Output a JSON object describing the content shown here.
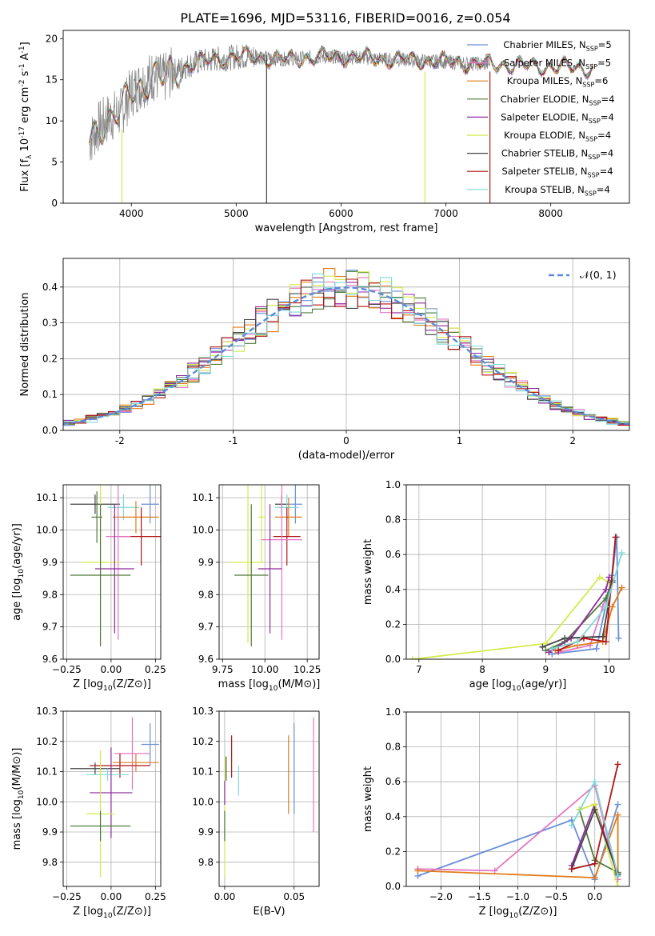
{
  "figure": {
    "title": "PLATE=1696, MJD=53116, FIBERID=0016, z=0.054"
  },
  "colors": {
    "Chabrier MILES": "#6b8fd6",
    "Salpeter MILES": "#e377c2",
    "Kroupa MILES": "#e07c1a",
    "Chabrier ELODIE": "#4f7a3a",
    "Salpeter ELODIE": "#8e2a9e",
    "Kroupa ELODIE": "#d4ea4a",
    "Chabrier STELIB": "#444444",
    "Salpeter STELIB": "#b01515",
    "Kroupa STELIB": "#7fd8d8",
    "observed": "#808080",
    "normal": "#5b8bd9",
    "grid": "#b0b0b0"
  },
  "chart_data": [
    {
      "id": "spectrum",
      "type": "line",
      "xlabel": "wavelength [Angstrom, rest frame]",
      "ylabel": "Flux [f_λ 10^-17 erg cm^-2 s^-1 A^-1]",
      "xlim": [
        3350,
        8750
      ],
      "ylim": [
        0,
        21
      ],
      "xticks": [
        4000,
        5000,
        6000,
        7000,
        8000
      ],
      "yticks": [
        0,
        5,
        10,
        15,
        20
      ],
      "grid": false,
      "legend_position": "right",
      "legend": [
        {
          "label": "Chabrier MILES, N_SSP=5",
          "color_key": "Chabrier MILES"
        },
        {
          "label": "Salpeter MILES, N_SSP=5",
          "color_key": "Salpeter MILES"
        },
        {
          "label": "Kroupa MILES, N_SSP=6",
          "color_key": "Kroupa MILES"
        },
        {
          "label": "Chabrier ELODIE, N_SSP=4",
          "color_key": "Chabrier ELODIE"
        },
        {
          "label": "Salpeter ELODIE, N_SSP=4",
          "color_key": "Salpeter ELODIE"
        },
        {
          "label": "Kroupa ELODIE, N_SSP=4",
          "color_key": "Kroupa ELODIE"
        },
        {
          "label": "Chabrier STELIB, N_SSP=4",
          "color_key": "Chabrier STELIB"
        },
        {
          "label": "Salpeter STELIB, N_SSP=4",
          "color_key": "Salpeter STELIB"
        },
        {
          "label": "Kroupa STELIB, N_SSP=4",
          "color_key": "Kroupa STELIB"
        }
      ],
      "continuum_x": [
        3600,
        3700,
        3800,
        3900,
        4000,
        4100,
        4200,
        4300,
        4400,
        4500,
        4600,
        4700,
        4800,
        4900,
        5000,
        5200,
        5400,
        5600,
        5800,
        6000,
        6200,
        6400,
        6600,
        6800,
        7000,
        7200,
        7400,
        7600,
        7800,
        8000,
        8200,
        8400
      ],
      "continuum_y": [
        7.5,
        9.5,
        10.5,
        11.0,
        13.5,
        14.5,
        15.5,
        15.0,
        16.0,
        16.5,
        17.0,
        17.3,
        17.5,
        17.6,
        17.8,
        17.8,
        17.5,
        17.6,
        17.8,
        17.8,
        17.7,
        17.5,
        17.4,
        17.3,
        17.2,
        17.0,
        16.9,
        16.8,
        16.7,
        16.6,
        16.5,
        16.4
      ],
      "observed_range": [
        3600,
        7420
      ],
      "model_range": [
        3600,
        8400
      ],
      "bad_pixels": [
        {
          "x": 3910,
          "ymin": 0,
          "ymax": 9,
          "color_key": "Kroupa ELODIE"
        },
        {
          "x": 5290,
          "ymin": 0,
          "ymax": 18,
          "color_key": "Chabrier STELIB"
        },
        {
          "x": 6800,
          "ymin": 0,
          "ymax": 16,
          "color_key": "Kroupa ELODIE"
        },
        {
          "x": 7420,
          "ymin": 0,
          "ymax": 16,
          "color_key": "Salpeter STELIB"
        }
      ]
    },
    {
      "id": "residuals",
      "type": "histogram",
      "xlabel": "(data-model)/error",
      "ylabel": "Normed distribution",
      "xlim": [
        -2.5,
        2.5
      ],
      "ylim": [
        0,
        0.48
      ],
      "xticks": [
        -2,
        -1,
        0,
        1,
        2
      ],
      "yticks": [
        0.0,
        0.1,
        0.2,
        0.3,
        0.4
      ],
      "grid": true,
      "legend_position": "top-right",
      "normal_label": "𝒩(0, 1)",
      "bin_width": 0.1
    },
    {
      "id": "age_vs_Z",
      "type": "scatter",
      "xlabel": "Z [log10(Z/Z⊙)]",
      "ylabel": "age [log10(age/yr)]",
      "xlim": [
        -0.27,
        0.28
      ],
      "ylim": [
        9.6,
        10.14
      ],
      "xticks": [
        -0.25,
        0.0,
        0.25
      ],
      "xticklabels": [
        "−0.25",
        "0.00",
        "0.25"
      ],
      "yticks": [
        9.6,
        9.7,
        9.8,
        9.9,
        10.0,
        10.1
      ],
      "grid": true,
      "points": [
        {
          "series": "Chabrier STELIB",
          "x": -0.09,
          "y": 10.08,
          "xerr": 0.14,
          "yerr": 0.03
        },
        {
          "series": "Chabrier MILES",
          "x": 0.22,
          "y": 10.08,
          "xerr": 0.05,
          "yerr": 0.06
        },
        {
          "series": "Kroupa STELIB",
          "x": 0.07,
          "y": 10.07,
          "xerr": 0.09,
          "yerr": 0.04
        },
        {
          "series": "Chabrier ELODIE",
          "x": -0.08,
          "y": 10.04,
          "xerr": 0.03,
          "yerr": 0.08
        },
        {
          "series": "Kroupa MILES",
          "x": 0.14,
          "y": 10.04,
          "xerr": 0.13,
          "yerr": 0.05
        },
        {
          "series": "Salpeter STELIB",
          "x": 0.17,
          "y": 9.98,
          "xerr": 0.13,
          "yerr": 0.09
        },
        {
          "series": "Salpeter MILES",
          "x": 0.04,
          "y": 9.98,
          "xerr": 0.07,
          "yerr": 0.32
        },
        {
          "series": "Kroupa ELODIE",
          "x": -0.06,
          "y": 9.9,
          "xerr": 0.11,
          "yerr": 0.24
        },
        {
          "series": "Salpeter ELODIE",
          "x": 0.02,
          "y": 9.88,
          "xerr": 0.11,
          "yerr": 0.2
        },
        {
          "series": "Chabrier ELODIE",
          "x": -0.06,
          "y": 9.86,
          "xerr": 0.17,
          "yerr": 0.22
        }
      ]
    },
    {
      "id": "age_vs_mass",
      "type": "scatter",
      "xlabel": "mass [log10(M/M⊙)]",
      "ylabel": "",
      "xlim": [
        9.73,
        10.32
      ],
      "ylim": [
        9.6,
        10.14
      ],
      "xticks": [
        9.75,
        10.0,
        10.25
      ],
      "xticklabels": [
        "9.75",
        "10.00",
        "10.25"
      ],
      "yticks": [
        9.6,
        9.7,
        9.8,
        9.9,
        10.0,
        10.1
      ],
      "grid": true,
      "points": [
        {
          "series": "Chabrier STELIB",
          "x": 10.1,
          "y": 10.08,
          "xerr": 0.04,
          "yerr": 0.03
        },
        {
          "series": "Chabrier MILES",
          "x": 10.18,
          "y": 10.08,
          "xerr": 0.04,
          "yerr": 0.06
        },
        {
          "series": "Kroupa STELIB",
          "x": 10.13,
          "y": 10.07,
          "xerr": 0.07,
          "yerr": 0.04
        },
        {
          "series": "Kroupa MILES",
          "x": 10.14,
          "y": 10.04,
          "xerr": 0.08,
          "yerr": 0.06
        },
        {
          "series": "Kroupa ELODIE",
          "x": 9.98,
          "y": 10.04,
          "xerr": 0.02,
          "yerr": 0.14
        },
        {
          "series": "Salpeter STELIB",
          "x": 10.13,
          "y": 9.98,
          "xerr": 0.08,
          "yerr": 0.09
        },
        {
          "series": "Salpeter MILES",
          "x": 10.1,
          "y": 9.97,
          "xerr": 0.12,
          "yerr": 0.31
        },
        {
          "series": "Kroupa ELODIE",
          "x": 9.9,
          "y": 9.9,
          "xerr": 0.1,
          "yerr": 0.25
        },
        {
          "series": "Salpeter ELODIE",
          "x": 10.03,
          "y": 9.88,
          "xerr": 0.07,
          "yerr": 0.2
        },
        {
          "series": "Chabrier ELODIE",
          "x": 9.92,
          "y": 9.86,
          "xerr": 0.1,
          "yerr": 0.22
        }
      ]
    },
    {
      "id": "weight_vs_age",
      "type": "line",
      "xlabel": "age [log10(age/yr)]",
      "ylabel": "mass weight",
      "xlim": [
        6.8,
        10.32
      ],
      "ylim": [
        0,
        1.0
      ],
      "xticks": [
        7,
        8,
        9,
        10
      ],
      "yticks": [
        0.0,
        0.2,
        0.4,
        0.6,
        0.8,
        1.0
      ],
      "grid": true,
      "series": [
        {
          "name": "Kroupa ELODIE",
          "x": [
            6.9,
            9.0,
            9.85,
            10.0
          ],
          "y": [
            0.0,
            0.09,
            0.47,
            0.44
          ]
        },
        {
          "name": "Chabrier MILES",
          "x": [
            9.1,
            9.8,
            10.05,
            10.12,
            10.15
          ],
          "y": [
            0.03,
            0.06,
            0.48,
            0.7,
            0.12
          ]
        },
        {
          "name": "Salpeter MILES",
          "x": [
            9.2,
            9.7,
            9.9,
            10.05
          ],
          "y": [
            0.04,
            0.08,
            0.3,
            0.45
          ]
        },
        {
          "name": "Kroupa MILES",
          "x": [
            9.15,
            9.5,
            9.9,
            10.05,
            10.2
          ],
          "y": [
            0.05,
            0.08,
            0.1,
            0.3,
            0.41
          ]
        },
        {
          "name": "Chabrier ELODIE",
          "x": [
            9.0,
            9.3,
            9.95,
            10.05
          ],
          "y": [
            0.05,
            0.1,
            0.35,
            0.45
          ]
        },
        {
          "name": "Salpeter ELODIE",
          "x": [
            9.05,
            9.4,
            9.95,
            10.0
          ],
          "y": [
            0.04,
            0.12,
            0.4,
            0.47
          ]
        },
        {
          "name": "Chabrier STELIB",
          "x": [
            8.95,
            9.3,
            9.9,
            10.05
          ],
          "y": [
            0.07,
            0.12,
            0.13,
            0.44
          ]
        },
        {
          "name": "Salpeter STELIB",
          "x": [
            9.2,
            9.6,
            9.95,
            10.1
          ],
          "y": [
            0.05,
            0.12,
            0.1,
            0.7
          ]
        },
        {
          "name": "Kroupa STELIB",
          "x": [
            9.1,
            9.5,
            9.95,
            10.2
          ],
          "y": [
            0.06,
            0.1,
            0.3,
            0.61
          ]
        }
      ]
    },
    {
      "id": "mass_vs_Z",
      "type": "scatter",
      "xlabel": "Z [log10(Z/Z⊙)]",
      "ylabel": "mass [log10(M/M⊙)]",
      "xlim": [
        -0.27,
        0.28
      ],
      "ylim": [
        9.72,
        10.3
      ],
      "xticks": [
        -0.25,
        0.0,
        0.25
      ],
      "xticklabels": [
        "−0.25",
        "0.00",
        "0.25"
      ],
      "yticks": [
        9.8,
        9.9,
        10.0,
        10.1,
        10.2,
        10.3
      ],
      "grid": true,
      "points": [
        {
          "series": "Chabrier MILES",
          "x": 0.22,
          "y": 10.19,
          "xerr": 0.05,
          "yerr": 0.07
        },
        {
          "series": "Salpeter MILES",
          "x": 0.12,
          "y": 10.16,
          "xerr": 0.1,
          "yerr": 0.12
        },
        {
          "series": "Kroupa MILES",
          "x": 0.14,
          "y": 10.13,
          "xerr": 0.13,
          "yerr": 0.03
        },
        {
          "series": "Salpeter STELIB",
          "x": 0.05,
          "y": 10.12,
          "xerr": 0.17,
          "yerr": 0.04
        },
        {
          "series": "Chabrier STELIB",
          "x": -0.09,
          "y": 10.11,
          "xerr": 0.14,
          "yerr": 0.02
        },
        {
          "series": "Kroupa STELIB",
          "x": -0.02,
          "y": 10.09,
          "xerr": 0.12,
          "yerr": 0.02
        },
        {
          "series": "Salpeter ELODIE",
          "x": 0.0,
          "y": 10.03,
          "xerr": 0.12,
          "yerr": 0.15
        },
        {
          "series": "Kroupa ELODIE",
          "x": -0.06,
          "y": 9.96,
          "xerr": 0.08,
          "yerr": 0.21
        },
        {
          "series": "Chabrier ELODIE",
          "x": -0.06,
          "y": 9.92,
          "xerr": 0.17,
          "yerr": 0.05
        }
      ]
    },
    {
      "id": "mass_vs_ebv",
      "type": "scatter",
      "xlabel": "E(B-V)",
      "ylabel": "",
      "xlim": [
        -0.004,
        0.068
      ],
      "ylim": [
        9.72,
        10.3
      ],
      "xticks": [
        0.0,
        0.05
      ],
      "xticklabels": [
        "0.00",
        "0.05"
      ],
      "yticks": [
        9.8,
        9.9,
        10.0,
        10.1,
        10.2,
        10.3
      ],
      "grid": true,
      "points": [
        {
          "series": "Kroupa ELODIE",
          "x": 0.0,
          "y": 9.95,
          "xerr": 0.0,
          "yerr": 0.2
        },
        {
          "series": "Chabrier ELODIE",
          "x": 0.0,
          "y": 9.92,
          "xerr": 0.0,
          "yerr": 0.05
        },
        {
          "series": "Salpeter ELODIE",
          "x": 0.0,
          "y": 10.03,
          "xerr": 0.0,
          "yerr": 0.04
        },
        {
          "series": "Chabrier STELIB",
          "x": 0.001,
          "y": 10.11,
          "xerr": 0.0,
          "yerr": 0.04
        },
        {
          "series": "Salpeter STELIB",
          "x": 0.005,
          "y": 10.15,
          "xerr": 0.0,
          "yerr": 0.07
        },
        {
          "series": "Kroupa STELIB",
          "x": 0.01,
          "y": 10.07,
          "xerr": 0.0,
          "yerr": 0.05
        },
        {
          "series": "Kroupa MILES",
          "x": 0.046,
          "y": 10.09,
          "xerr": 0.0,
          "yerr": 0.13
        },
        {
          "series": "Chabrier MILES",
          "x": 0.05,
          "y": 10.11,
          "xerr": 0.0,
          "yerr": 0.15
        },
        {
          "series": "Salpeter MILES",
          "x": 0.064,
          "y": 10.09,
          "xerr": 0.0,
          "yerr": 0.19
        }
      ]
    },
    {
      "id": "weight_vs_Z",
      "type": "line",
      "xlabel": "Z [log10(Z/Z⊙)]",
      "ylabel": "mass weight",
      "xlim": [
        -2.45,
        0.45
      ],
      "ylim": [
        0,
        1.0
      ],
      "xticks": [
        -2.0,
        -1.5,
        -1.0,
        -0.5,
        0.0
      ],
      "xticklabels": [
        "−2.0",
        "−1.5",
        "−1.0",
        "−0.5",
        "0.0"
      ],
      "yticks": [
        0.0,
        0.2,
        0.4,
        0.6,
        0.8,
        1.0
      ],
      "grid": true,
      "series": [
        {
          "name": "Chabrier MILES",
          "x": [
            -2.3,
            -0.3,
            0.0,
            0.3
          ],
          "y": [
            0.06,
            0.38,
            0.04,
            0.47
          ]
        },
        {
          "name": "Salpeter MILES",
          "x": [
            -2.3,
            -1.3,
            0.0,
            0.3
          ],
          "y": [
            0.1,
            0.09,
            0.58,
            0.04
          ]
        },
        {
          "name": "Kroupa MILES",
          "x": [
            -2.3,
            0.0,
            0.3,
            0.3
          ],
          "y": [
            0.09,
            0.05,
            0.41,
            0.08
          ]
        },
        {
          "name": "Chabrier ELODIE",
          "x": [
            -0.2,
            0.0,
            0.3
          ],
          "y": [
            0.44,
            0.15,
            0.08
          ]
        },
        {
          "name": "Salpeter ELODIE",
          "x": [
            -0.3,
            0.0,
            0.3
          ],
          "y": [
            0.12,
            0.47,
            0.06
          ]
        },
        {
          "name": "Kroupa ELODIE",
          "x": [
            -0.2,
            0.0,
            0.3
          ],
          "y": [
            0.44,
            0.47,
            0.0
          ]
        },
        {
          "name": "Chabrier STELIB",
          "x": [
            -0.3,
            0.0,
            0.3
          ],
          "y": [
            0.1,
            0.44,
            0.07
          ]
        },
        {
          "name": "Salpeter STELIB",
          "x": [
            -0.3,
            0.0,
            0.3
          ],
          "y": [
            0.1,
            0.13,
            0.7
          ]
        },
        {
          "name": "Kroupa STELIB",
          "x": [
            -0.3,
            0.0,
            0.3
          ],
          "y": [
            0.35,
            0.6,
            0.06
          ]
        }
      ]
    }
  ]
}
